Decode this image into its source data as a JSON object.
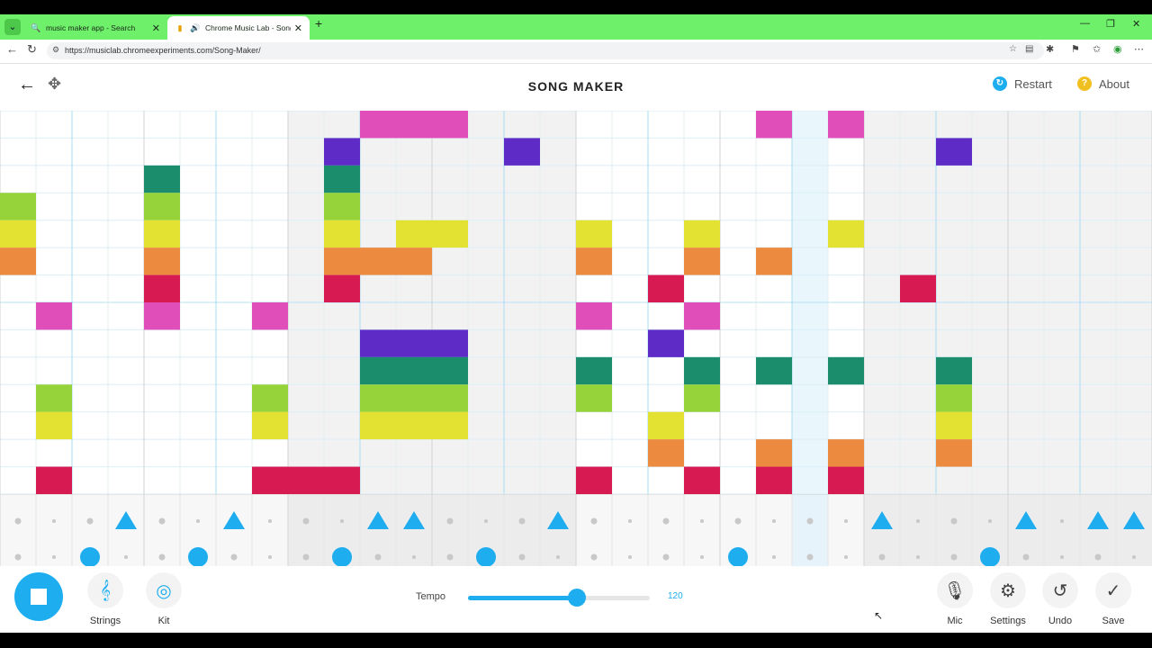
{
  "browser": {
    "tabs": [
      {
        "title": "music maker app - Search",
        "icon": "search-icon",
        "active": false
      },
      {
        "title": "Chrome Music Lab - Song Ma",
        "icon": "speaker-icon",
        "active": true
      }
    ],
    "url": "https://musiclab.chromeexperiments.com/Song-Maker/"
  },
  "header": {
    "title": "SONG MAKER",
    "restart_label": "Restart",
    "about_label": "About"
  },
  "colors": {
    "accent": "#1eaef0",
    "pink": "#e04fb9",
    "purple": "#5f2bc7",
    "teal": "#1b8c6c",
    "lime": "#96d33a",
    "yellow": "#e3e233",
    "orange": "#ec8b40",
    "crimson": "#d81a52"
  },
  "grid": {
    "columns": 32,
    "rows": 14,
    "beats_per_bar": 4,
    "highlighted_column": 22,
    "active_columns": [
      8,
      9,
      10,
      11,
      12,
      13,
      14,
      15,
      24,
      25,
      26,
      27,
      28,
      29,
      30,
      31
    ],
    "notes": [
      {
        "row": 0,
        "cols": [
          10,
          11,
          12,
          21,
          23
        ],
        "color": "pink"
      },
      {
        "row": 1,
        "cols": [
          9,
          14,
          26
        ],
        "color": "purple"
      },
      {
        "row": 2,
        "cols": [
          4,
          9
        ],
        "color": "teal"
      },
      {
        "row": 3,
        "cols": [
          0,
          4,
          9
        ],
        "color": "lime"
      },
      {
        "row": 4,
        "cols": [
          0,
          4,
          9,
          11,
          12,
          16,
          19,
          23
        ],
        "color": "yellow"
      },
      {
        "row": 5,
        "cols": [
          0,
          4,
          9,
          10,
          11,
          16,
          19,
          21
        ],
        "color": "orange"
      },
      {
        "row": 6,
        "cols": [
          4,
          9,
          18,
          25
        ],
        "color": "crimson"
      },
      {
        "row": 7,
        "cols": [
          1,
          4,
          7,
          16,
          19
        ],
        "color": "pink"
      },
      {
        "row": 8,
        "cols": [
          10,
          11,
          12,
          18
        ],
        "color": "purple"
      },
      {
        "row": 9,
        "cols": [
          10,
          11,
          12,
          16,
          19,
          21,
          23,
          26
        ],
        "color": "teal"
      },
      {
        "row": 10,
        "cols": [
          1,
          7,
          10,
          11,
          12,
          16,
          19,
          26
        ],
        "color": "lime"
      },
      {
        "row": 11,
        "cols": [
          1,
          7,
          10,
          11,
          12,
          18,
          26
        ],
        "color": "yellow"
      },
      {
        "row": 12,
        "cols": [
          18,
          21,
          23,
          26
        ],
        "color": "orange"
      },
      {
        "row": 13,
        "cols": [
          1,
          7,
          8,
          9,
          16,
          19,
          21,
          23
        ],
        "color": "crimson"
      }
    ]
  },
  "rhythm": {
    "triangle_cols": [
      3,
      6,
      10,
      11,
      15,
      24,
      28,
      30,
      31
    ],
    "circle_cols": [
      2,
      5,
      9,
      13,
      20,
      27
    ]
  },
  "controls": {
    "instrument_label": "Strings",
    "instrument_icon": "guitar-icon",
    "kit_label": "Kit",
    "kit_icon": "drum-icon",
    "tempo_label": "Tempo",
    "tempo_value": "120",
    "tempo_fraction": 0.6,
    "mic_label": "Mic",
    "settings_label": "Settings",
    "undo_label": "Undo",
    "save_label": "Save"
  }
}
